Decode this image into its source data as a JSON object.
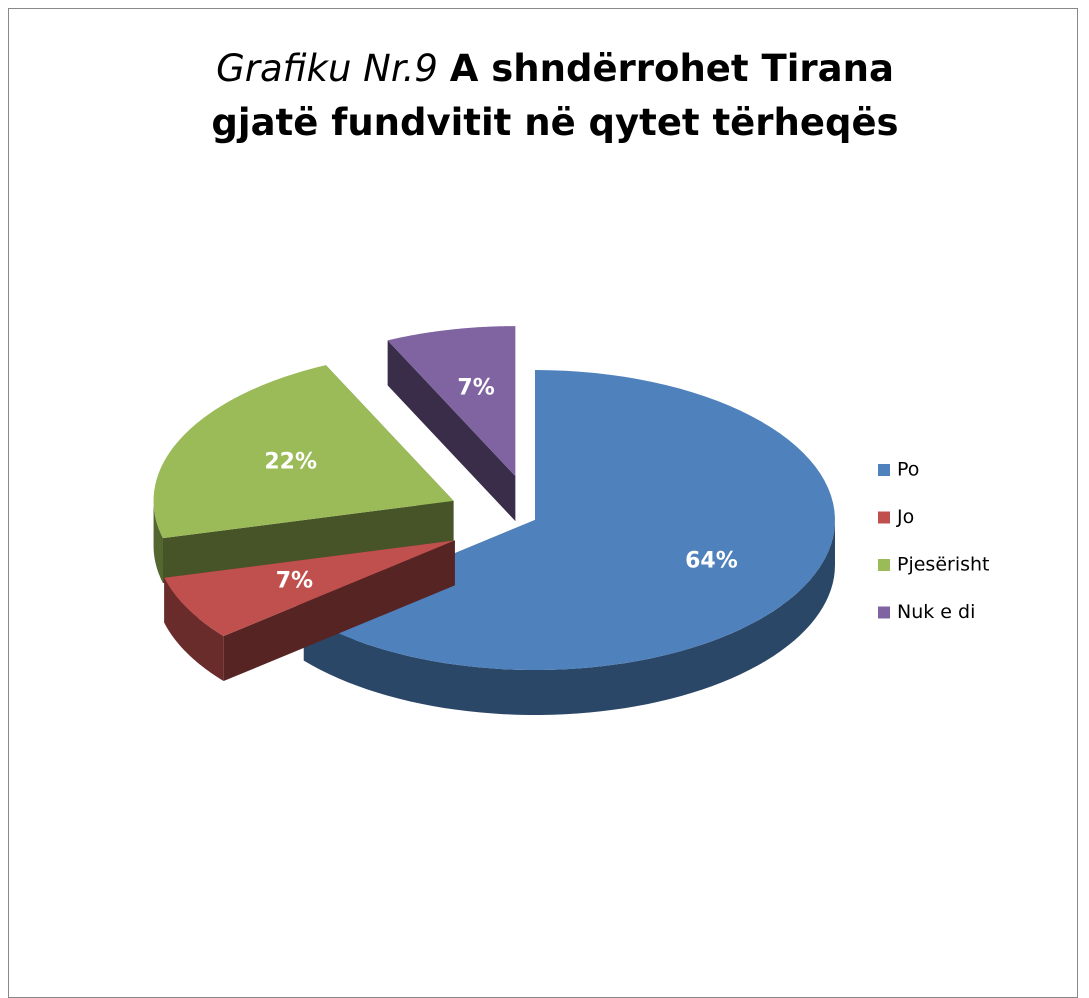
{
  "chart_data": {
    "type": "pie3d",
    "title_prefix": "Grafiku Nr.9",
    "title": "A shndërrohet Tirana gjatë fundvitit në qytet tërheqës",
    "categories": [
      "Po",
      "Jo",
      "Pjesërisht",
      "Nuk e di"
    ],
    "values": [
      64,
      7,
      22,
      7
    ],
    "value_labels": [
      "64%",
      "7%",
      "22%",
      "7%"
    ],
    "colors": [
      "#4f81bd",
      "#c0504d",
      "#9bbb59",
      "#8064a2"
    ],
    "legend": "right"
  }
}
